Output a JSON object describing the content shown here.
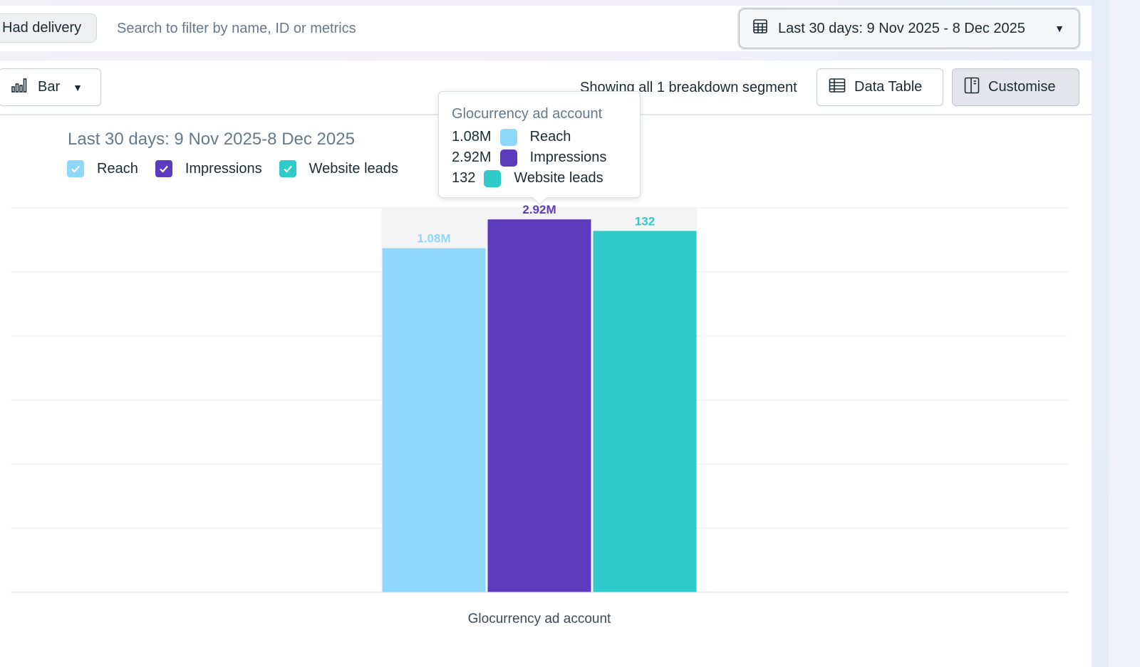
{
  "filters": {
    "chip_label": "Had delivery",
    "search_placeholder": "Search to filter by name, ID or metrics",
    "date_label": "Last 30 days: 9 Nov 2025 - 8 Dec 2025"
  },
  "toolbar": {
    "chart_type": "Bar",
    "segment_text": "Showing all 1 breakdown segment",
    "data_table_label": "Data Table",
    "customise_label": "Customise"
  },
  "chart_data": {
    "type": "bar",
    "title": "Last 30 days: 9 Nov 2025-8 Dec 2025",
    "categories": [
      "Glocurrency ad account"
    ],
    "series": [
      {
        "name": "Reach",
        "values": [
          1080000
        ],
        "label": "1.08M",
        "color": "#8fd8fb"
      },
      {
        "name": "Impressions",
        "values": [
          2920000
        ],
        "label": "2.92M",
        "color": "#5c3bbd"
      },
      {
        "name": "Website leads",
        "values": [
          132
        ],
        "label": "132",
        "color": "#2fcbcb"
      }
    ],
    "scale_note": "each series on its own axis",
    "relative_heights": [
      0.895,
      0.97,
      0.94
    ],
    "grid": true,
    "legend_position": "top-left"
  },
  "tooltip": {
    "title": "Glocurrency ad account",
    "rows": [
      {
        "value": "1.08M",
        "name": "Reach",
        "color": "#8fd8fb"
      },
      {
        "value": "2.92M",
        "name": "Impressions",
        "color": "#5c3bbd"
      },
      {
        "value": "132",
        "name": "Website leads",
        "color": "#2fcbcb"
      }
    ]
  },
  "icons": {
    "date": "calendar-grid-icon",
    "chart_type": "bar-chart-icon",
    "data_table": "table-icon",
    "customise": "panel-icon"
  }
}
